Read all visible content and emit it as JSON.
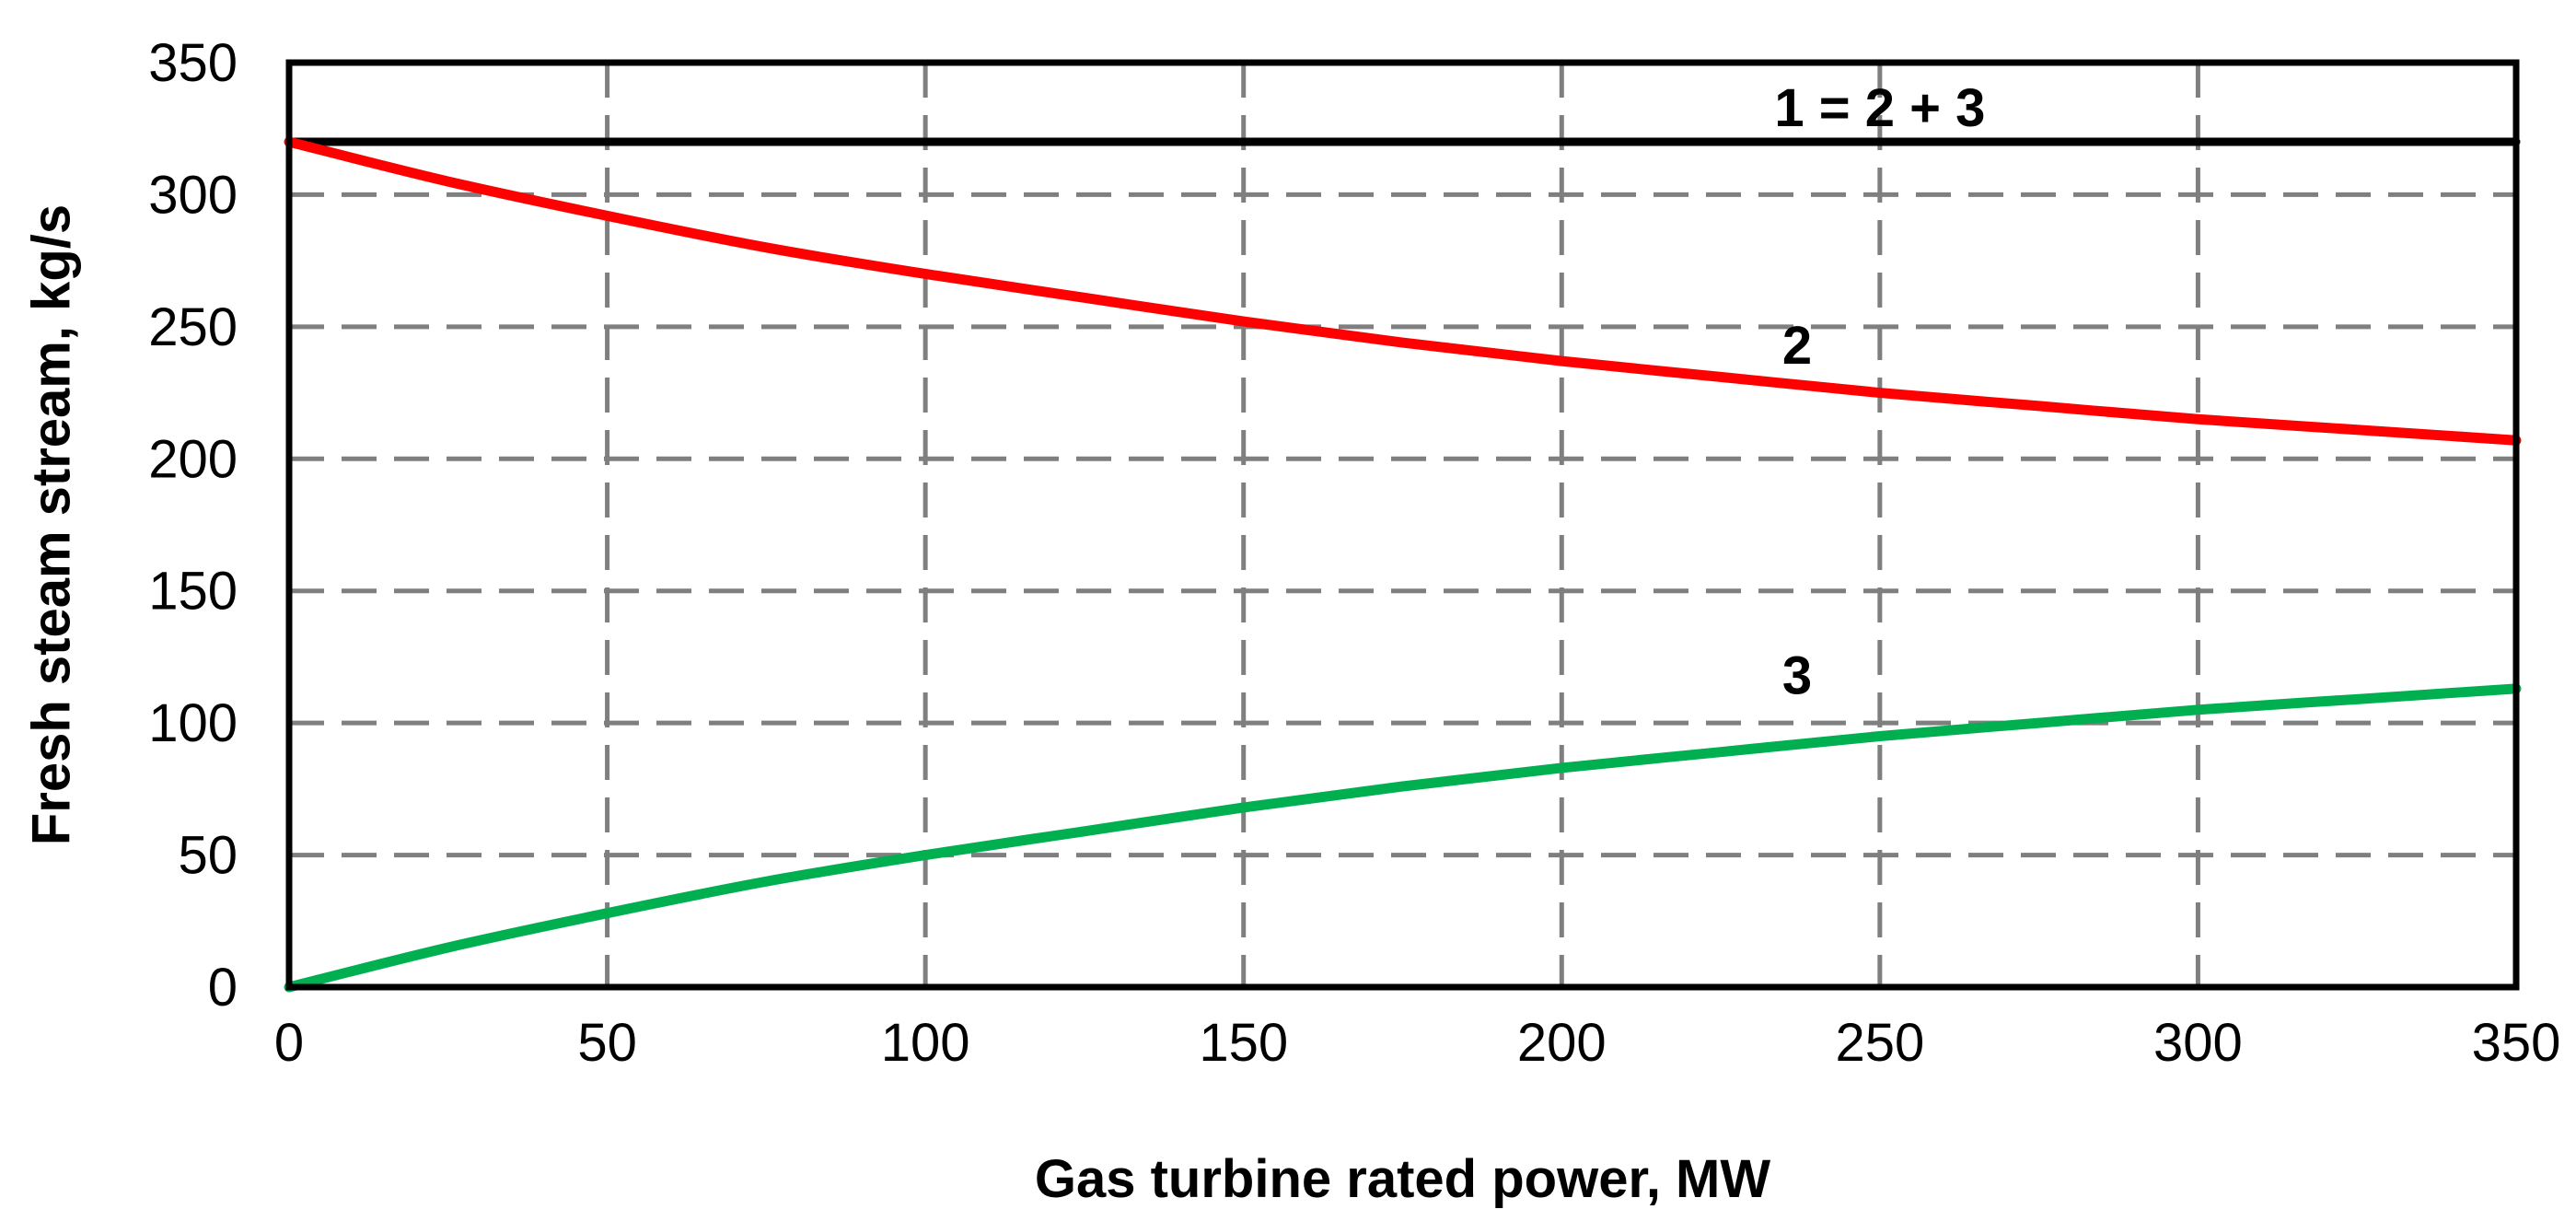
{
  "chart_data": {
    "type": "line",
    "title": "",
    "xlabel": "Gas turbine rated power, MW",
    "ylabel": "Fresh steam stream, kg/s",
    "xlim": [
      0,
      350
    ],
    "ylim": [
      0,
      350
    ],
    "xticks": [
      0,
      50,
      100,
      150,
      200,
      250,
      300,
      350
    ],
    "yticks": [
      0,
      50,
      100,
      150,
      200,
      250,
      300,
      350
    ],
    "xtick_labels": [
      "0",
      "50",
      "100",
      "150",
      "200",
      "250",
      "300",
      "350"
    ],
    "ytick_labels": [
      "0",
      "50",
      "100",
      "150",
      "200",
      "250",
      "300",
      "350"
    ],
    "grid": true,
    "legend": "none",
    "series": [
      {
        "name": "1 = 2 + 3",
        "color": "#000000",
        "x": [
          0,
          350
        ],
        "y": [
          320,
          320
        ]
      },
      {
        "name": "2",
        "color": "#ff0000",
        "x": [
          0,
          25,
          50,
          75,
          100,
          125,
          150,
          175,
          200,
          225,
          250,
          275,
          300,
          325,
          350
        ],
        "y": [
          320,
          305,
          292,
          280,
          270,
          261,
          252,
          244,
          237,
          231,
          225,
          220,
          215,
          211,
          207
        ]
      },
      {
        "name": "3",
        "color": "#00b050",
        "x": [
          0,
          25,
          50,
          75,
          100,
          125,
          150,
          175,
          200,
          225,
          250,
          275,
          300,
          325,
          350
        ],
        "y": [
          0,
          15,
          28,
          40,
          50,
          59,
          68,
          76,
          83,
          89,
          95,
          100,
          105,
          109,
          113
        ]
      }
    ],
    "annotations": [
      {
        "text": "1 = 2 + 3",
        "series": "1 = 2 + 3",
        "x": 250,
        "y": 333
      },
      {
        "text": "2",
        "series": "2",
        "x": 237,
        "y": 243
      },
      {
        "text": "3",
        "series": "3",
        "x": 237,
        "y": 118
      }
    ]
  }
}
